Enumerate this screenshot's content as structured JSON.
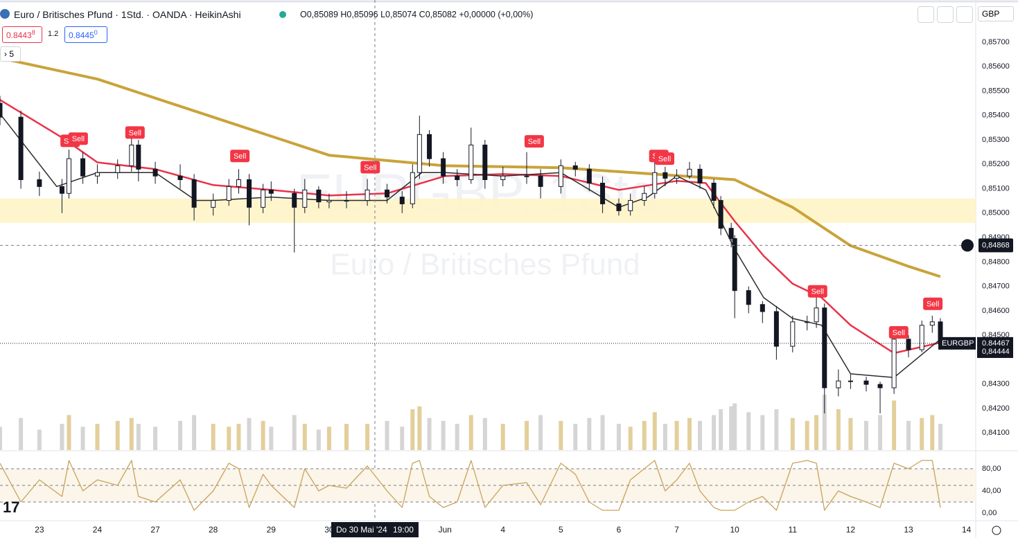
{
  "header": {
    "title": "Euro / Britisches Pfund · 1Std. · OANDA · HeikinAshi",
    "ohlc": "O0,85089 H0,85096 L0,85074 C0,85082 +0,00000 (+0,00%)",
    "currency": "GBP",
    "sell_price": "0.8443",
    "sell_sup": "8",
    "spread": "1.2",
    "buy_price": "0.8445",
    "buy_sup": "0",
    "indicators": "5",
    "watermark_symbol": "EURGBP, 1Std.",
    "watermark_name": "Euro / Britisches Pfund"
  },
  "chart_data": {
    "type": "candlestick",
    "x": [
      -0.68,
      -0.32,
      0,
      0.39,
      0.51,
      0.75,
      1,
      1.35,
      1.59,
      1.71,
      2,
      2.43,
      2.67,
      3,
      3.27,
      3.44,
      3.62,
      3.86,
      4,
      4.4,
      4.58,
      4.82,
      5,
      5.3,
      5.66,
      6,
      6.26,
      6.44,
      6.56,
      6.73,
      6.97,
      7.21,
      7.45,
      7.69,
      8,
      8.41,
      8.65,
      9,
      9.25,
      9.49,
      9.72,
      10,
      10.2,
      10.44,
      10.62,
      10.8,
      11,
      11.22,
      11.4,
      11.64,
      11.76,
      11.94,
      12,
      12.24,
      12.48,
      12.72,
      13,
      13.25,
      13.41,
      13.55,
      13.79,
      14,
      14.27,
      14.51,
      14.75,
      15,
      15.23,
      15.41,
      15.55
    ],
    "open": [
      0.8545,
      0.85393,
      0.85137,
      0.85109,
      0.85081,
      0.85223,
      0.85152,
      0.85166,
      0.85194,
      0.85279,
      0.8518,
      0.85152,
      0.85137,
      0.85024,
      0.85052,
      0.85109,
      0.85137,
      0.85024,
      0.85095,
      0.85081,
      0.85024,
      0.85095,
      0.85046,
      0.85052,
      0.85052,
      0.85095,
      0.85066,
      0.85038,
      0.85166,
      0.85322,
      0.85223,
      0.85152,
      0.85137,
      0.85279,
      0.85137,
      0.85152,
      0.85152,
      0.85109,
      0.85194,
      0.8518,
      0.85123,
      0.85038,
      0.8501,
      0.85052,
      0.85081,
      0.85166,
      0.85143,
      0.85152,
      0.8518,
      0.85123,
      0.85052,
      0.84938,
      0.84896,
      0.84683,
      0.84626,
      0.84597,
      0.84455,
      0.84555,
      0.84555,
      0.84612,
      0.84285,
      0.84313,
      0.84313,
      0.84299,
      0.84285,
      0.84484,
      0.84441,
      0.84541,
      0.84555
    ],
    "high": [
      0.8548,
      0.8542,
      0.8517,
      0.8514,
      0.8526,
      0.8525,
      0.852,
      0.8522,
      0.8532,
      0.853,
      0.8521,
      0.852,
      0.8516,
      0.8508,
      0.8514,
      0.8518,
      0.8516,
      0.8512,
      0.8513,
      0.851,
      0.8514,
      0.8511,
      0.8508,
      0.8509,
      0.8514,
      0.8512,
      0.8509,
      0.852,
      0.85399,
      0.8534,
      0.8525,
      0.8518,
      0.8535,
      0.853,
      0.8519,
      0.8525,
      0.8518,
      0.8522,
      0.8521,
      0.852,
      0.8515,
      0.8506,
      0.8508,
      0.8511,
      0.8524,
      0.8519,
      0.8518,
      0.8521,
      0.852,
      0.8514,
      0.8507,
      0.8496,
      0.8491,
      0.847,
      0.8464,
      0.8462,
      0.8458,
      0.8458,
      0.8467,
      0.8463,
      0.8436,
      0.8434,
      0.8433,
      0.8431,
      0.8451,
      0.845,
      0.8456,
      0.8458,
      0.8457
    ],
    "low": [
      0.8536,
      0.851,
      0.8507,
      0.85,
      0.8506,
      0.8512,
      0.8512,
      0.8514,
      0.8517,
      0.8513,
      0.8512,
      0.851,
      0.8497,
      0.8499,
      0.8503,
      0.8508,
      0.8495,
      0.85,
      0.8505,
      0.84839,
      0.85,
      0.8502,
      0.8502,
      0.8502,
      0.8503,
      0.8504,
      0.85,
      0.8502,
      0.8514,
      0.8519,
      0.8512,
      0.8511,
      0.8512,
      0.851,
      0.8511,
      0.8512,
      0.8506,
      0.8508,
      0.8515,
      0.8509,
      0.85,
      0.8499,
      0.8499,
      0.8503,
      0.8506,
      0.8511,
      0.8512,
      0.8514,
      0.851,
      0.8502,
      0.8491,
      0.8486,
      0.8457,
      0.8459,
      0.8455,
      0.844,
      0.8443,
      0.8452,
      0.8453,
      0.8418,
      0.8425,
      0.8428,
      0.8427,
      0.8418,
      0.8426,
      0.8441,
      0.8443,
      0.8451,
      0.8444
    ],
    "close": [
      0.85393,
      0.85137,
      0.85109,
      0.85081,
      0.85223,
      0.85152,
      0.85166,
      0.85194,
      0.85279,
      0.8518,
      0.85152,
      0.85137,
      0.85024,
      0.85052,
      0.85109,
      0.85137,
      0.85024,
      0.85095,
      0.85081,
      0.85024,
      0.85095,
      0.85046,
      0.85052,
      0.85052,
      0.85095,
      0.85066,
      0.85038,
      0.85166,
      0.85322,
      0.85223,
      0.85152,
      0.85137,
      0.85279,
      0.85137,
      0.85152,
      0.85152,
      0.85109,
      0.85194,
      0.8518,
      0.85123,
      0.85038,
      0.8501,
      0.85052,
      0.85081,
      0.85166,
      0.85143,
      0.85152,
      0.8518,
      0.85123,
      0.85052,
      0.84938,
      0.84896,
      0.84683,
      0.84626,
      0.84597,
      0.84455,
      0.84555,
      0.84555,
      0.84612,
      0.84285,
      0.84313,
      0.84313,
      0.84299,
      0.84285,
      0.84484,
      0.84441,
      0.84541,
      0.84555,
      0.8447
    ],
    "volume": [
      40,
      55,
      35,
      45,
      60,
      40,
      45,
      50,
      55,
      45,
      40,
      50,
      60,
      45,
      40,
      45,
      55,
      50,
      40,
      60,
      45,
      35,
      40,
      45,
      45,
      50,
      40,
      70,
      75,
      55,
      50,
      45,
      60,
      55,
      45,
      50,
      60,
      50,
      45,
      55,
      60,
      45,
      40,
      50,
      65,
      45,
      50,
      55,
      50,
      60,
      70,
      75,
      80,
      65,
      60,
      70,
      55,
      50,
      60,
      95,
      70,
      55,
      50,
      60,
      85,
      50,
      55,
      60,
      45
    ],
    "stochastic": [
      90,
      20,
      60,
      30,
      95,
      40,
      60,
      50,
      95,
      30,
      20,
      60,
      5,
      40,
      90,
      80,
      10,
      70,
      50,
      10,
      80,
      40,
      50,
      45,
      85,
      40,
      10,
      90,
      95,
      30,
      10,
      20,
      95,
      10,
      50,
      55,
      15,
      90,
      70,
      20,
      5,
      5,
      60,
      80,
      95,
      40,
      60,
      90,
      40,
      10,
      5,
      5,
      5,
      20,
      30,
      5,
      90,
      95,
      90,
      5,
      40,
      30,
      20,
      10,
      90,
      80,
      95,
      95,
      10
    ],
    "series": [
      {
        "color": "#c9a33b",
        "x": [
          -0.68,
          1,
          3,
          5,
          7,
          9,
          10.8,
          12,
          13,
          14,
          15,
          15.55
        ],
        "values": [
          0.85635,
          0.85549,
          0.85393,
          0.85237,
          0.85194,
          0.85186,
          0.85157,
          0.85137,
          0.85024,
          0.84867,
          0.84782,
          0.8474
        ]
      },
      {
        "color": "#e8334a",
        "x": [
          -0.68,
          0.4,
          1,
          2,
          3,
          4,
          5,
          6,
          7,
          8,
          9,
          10,
          11,
          11.5,
          12,
          12.5,
          13,
          13.5,
          14,
          14.75,
          15.55
        ],
        "values": [
          0.85464,
          0.85308,
          0.85208,
          0.8518,
          0.85115,
          0.85095,
          0.85072,
          0.85081,
          0.85152,
          0.8516,
          0.85152,
          0.85095,
          0.85132,
          0.85123,
          0.84967,
          0.84825,
          0.84711,
          0.84654,
          0.84541,
          0.84427,
          0.8447
        ]
      },
      {
        "color": "#2a2a2a",
        "x": [
          -0.68,
          0.3,
          1,
          2,
          2.7,
          3,
          4,
          5,
          6,
          6.6,
          7,
          8,
          9,
          10,
          10.5,
          11,
          11.5,
          12,
          12.5,
          13,
          13.5,
          14,
          14.75,
          15.55
        ],
        "values": [
          0.85407,
          0.85109,
          0.85166,
          0.85166,
          0.85052,
          0.85052,
          0.85066,
          0.85052,
          0.85052,
          0.85166,
          0.85166,
          0.85152,
          0.85166,
          0.85024,
          0.85066,
          0.85152,
          0.85095,
          0.84853,
          0.84654,
          0.84569,
          0.84541,
          0.84342,
          0.84327,
          0.84484
        ]
      }
    ],
    "zone": [
      0.8496,
      0.8506
    ],
    "annotations": [
      {
        "text": "Sell",
        "x": 0.53,
        "y": 0.85296
      },
      {
        "text": "Sell",
        "x": 0.67,
        "y": 0.85305
      },
      {
        "text": "Sell",
        "x": 1.65,
        "y": 0.8533
      },
      {
        "text": "Sell",
        "x": 3.46,
        "y": 0.85234
      },
      {
        "text": "Sell",
        "x": 5.71,
        "y": 0.85188
      },
      {
        "text": "Sell",
        "x": 8.54,
        "y": 0.85294
      },
      {
        "text": "Sell",
        "x": 10.69,
        "y": 0.85234
      },
      {
        "text": "Sell",
        "x": 10.79,
        "y": 0.85223
      },
      {
        "text": "Sell",
        "x": 13.43,
        "y": 0.8468
      },
      {
        "text": "Sell",
        "x": 14.83,
        "y": 0.84512
      },
      {
        "text": "Sell",
        "x": 15.42,
        "y": 0.84629
      }
    ],
    "xlim": [
      -0.68,
      16.16
    ],
    "ylim": [
      0.8403,
      0.8585
    ],
    "xticks": [
      {
        "value": 0,
        "label": "23"
      },
      {
        "value": 1,
        "label": "24"
      },
      {
        "value": 2,
        "label": "27"
      },
      {
        "value": 3,
        "label": "28"
      },
      {
        "value": 4,
        "label": "29"
      },
      {
        "value": 5,
        "label": "30"
      },
      {
        "value": 7,
        "label": "Jun"
      },
      {
        "value": 8,
        "label": "4"
      },
      {
        "value": 9,
        "label": "5"
      },
      {
        "value": 10,
        "label": "6"
      },
      {
        "value": 11,
        "label": "7"
      },
      {
        "value": 12,
        "label": "10"
      },
      {
        "value": 13,
        "label": "11"
      },
      {
        "value": 14,
        "label": "12"
      },
      {
        "value": 15,
        "label": "13"
      },
      {
        "value": 16,
        "label": "14"
      }
    ],
    "yticks": [
      {
        "value": 0.841,
        "label": "0,84100"
      },
      {
        "value": 0.842,
        "label": "0,84200"
      },
      {
        "value": 0.843,
        "label": "0,84300"
      },
      {
        "value": 0.845,
        "label": "0,84500"
      },
      {
        "value": 0.846,
        "label": "0,84600"
      },
      {
        "value": 0.847,
        "label": "0,84700"
      },
      {
        "value": 0.848,
        "label": "0,84800"
      },
      {
        "value": 0.849,
        "label": "0,84900"
      },
      {
        "value": 0.85,
        "label": "0,85000"
      },
      {
        "value": 0.851,
        "label": "0,85100"
      },
      {
        "value": 0.852,
        "label": "0,85200"
      },
      {
        "value": 0.853,
        "label": "0,85300"
      },
      {
        "value": 0.854,
        "label": "0,85400"
      },
      {
        "value": 0.855,
        "label": "0,85500"
      },
      {
        "value": 0.856,
        "label": "0,85600"
      },
      {
        "value": 0.857,
        "label": "0,85700"
      }
    ],
    "y2lim": [
      -13.75,
      107.5
    ],
    "y2ticks": [
      {
        "value": 0,
        "label": "0,00"
      },
      {
        "value": 40,
        "label": "40,00"
      },
      {
        "value": 80,
        "label": "80,00"
      }
    ],
    "stoch_levels": [
      20,
      50,
      80
    ],
    "crosshair": {
      "x": 5.79,
      "price": {
        "value": 0.84868,
        "label": "0,84868"
      },
      "date": "Do 30 Mai '24",
      "time": "19:00"
    },
    "last_price": {
      "value": 0.84467,
      "label": "0,84467"
    },
    "symbol_tag": "EURGBP",
    "second_price": {
      "value": 0.84444,
      "label": "0,84444"
    }
  }
}
